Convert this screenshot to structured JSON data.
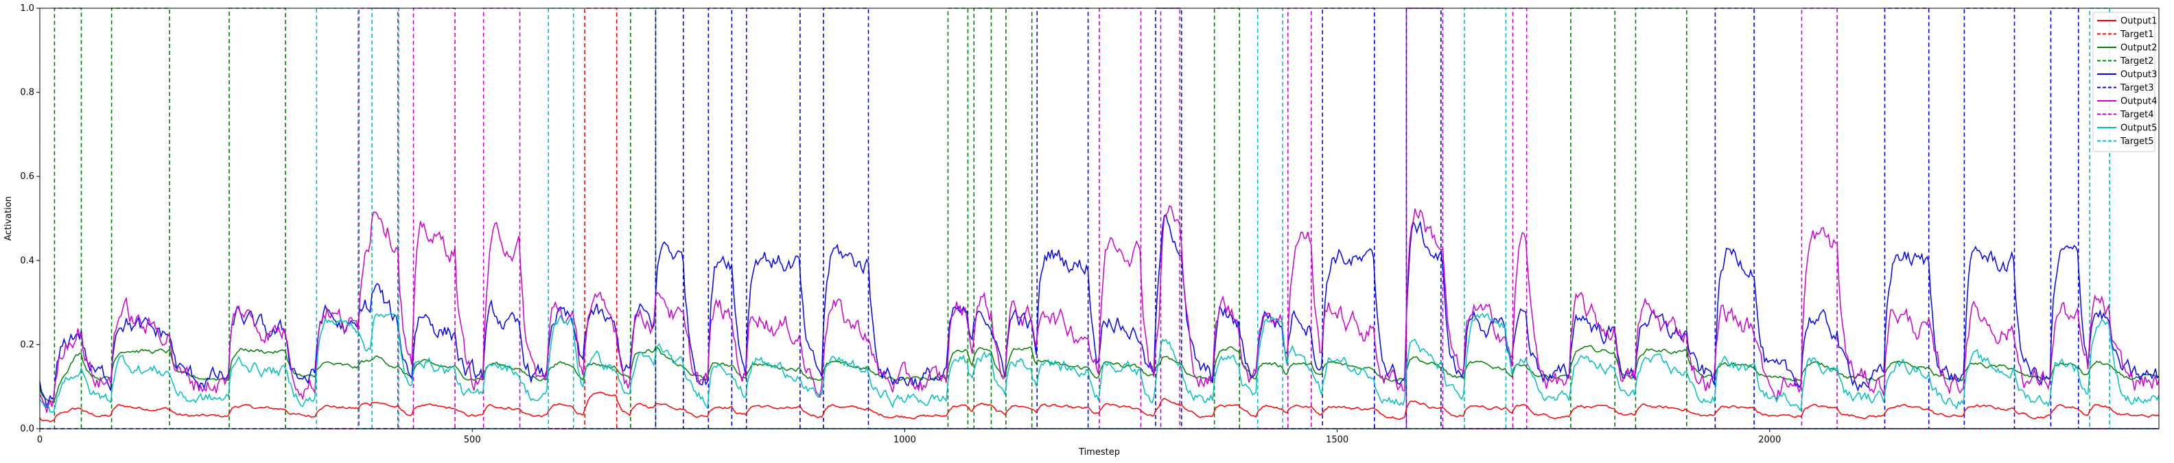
{
  "chart_data": {
    "type": "line",
    "title": "",
    "xlabel": "Timestep",
    "ylabel": "Activation",
    "xlim": [
      0,
      2450
    ],
    "ylim": [
      0,
      1.0
    ],
    "xticks": [
      0,
      500,
      1000,
      1500,
      2000
    ],
    "yticks": [
      "0.0",
      "0.2",
      "0.4",
      "0.6",
      "0.8",
      "1.0"
    ],
    "grid": false,
    "legend_position": "top-right",
    "series": [
      {
        "name": "Output1",
        "color": "#ff0000",
        "style": "solid",
        "role": "output",
        "base": 0.03,
        "peak": 0.08
      },
      {
        "name": "Target1",
        "color": "#ff0000",
        "style": "dashed",
        "role": "target",
        "intervals": [
          [
            630,
            667
          ]
        ]
      },
      {
        "name": "Output2",
        "color": "#008000",
        "style": "solid",
        "role": "output",
        "base": 0.12,
        "peak": 0.19
      },
      {
        "name": "Target2",
        "color": "#008000",
        "style": "dashed",
        "role": "target",
        "intervals": [
          [
            17,
            48
          ],
          [
            83,
            150
          ],
          [
            219,
            284
          ],
          [
            683,
            712
          ],
          [
            1050,
            1073
          ],
          [
            1080,
            1100
          ],
          [
            1117,
            1147
          ],
          [
            1358,
            1387
          ],
          [
            1770,
            1821
          ],
          [
            1845,
            1904
          ]
        ]
      },
      {
        "name": "Output3",
        "color": "#0000ff",
        "style": "solid",
        "role": "output",
        "base": 0.12,
        "peak": 0.42
      },
      {
        "name": "Target3",
        "color": "#0000ff",
        "style": "dashed",
        "role": "target",
        "intervals": [
          [
            712,
            744
          ],
          [
            773,
            800
          ],
          [
            817,
            879
          ],
          [
            906,
            958
          ],
          [
            1153,
            1212
          ],
          [
            1290,
            1320
          ],
          [
            1483,
            1543
          ],
          [
            1580,
            1620
          ],
          [
            1937,
            1982
          ],
          [
            2133,
            2184
          ],
          [
            2225,
            2283
          ],
          [
            2325,
            2357
          ]
        ]
      },
      {
        "name": "Output4",
        "color": "#cc00cc",
        "style": "solid",
        "role": "output",
        "base": 0.11,
        "peak": 0.46
      },
      {
        "name": "Target4",
        "color": "#cc00cc",
        "style": "dashed",
        "role": "target",
        "intervals": [
          [
            369,
            414
          ],
          [
            432,
            480
          ],
          [
            513,
            555
          ],
          [
            1225,
            1273
          ],
          [
            1296,
            1318
          ],
          [
            1443,
            1470
          ],
          [
            1580,
            1622
          ],
          [
            1703,
            1719
          ],
          [
            2037,
            2078
          ]
        ]
      },
      {
        "name": "Output5",
        "color": "#00bfbf",
        "style": "solid",
        "role": "output",
        "base": 0.07,
        "peak": 0.26
      },
      {
        "name": "Target5",
        "color": "#00bfbf",
        "style": "dashed",
        "role": "target",
        "intervals": [
          [
            320,
            368
          ],
          [
            384,
            415
          ],
          [
            588,
            617
          ],
          [
            1408,
            1437
          ],
          [
            1647,
            1695
          ],
          [
            2370,
            2393
          ]
        ]
      }
    ]
  }
}
